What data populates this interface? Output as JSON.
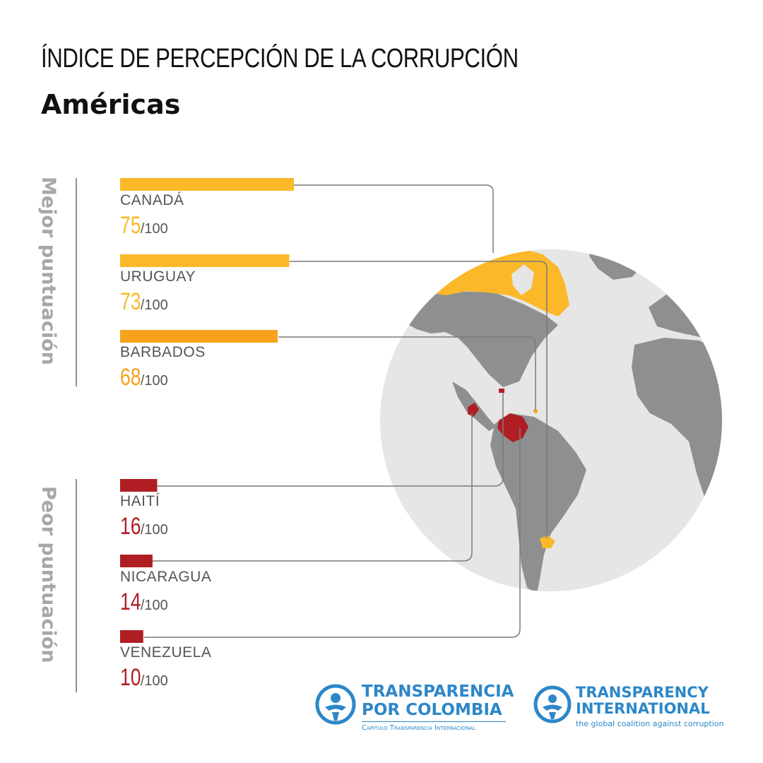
{
  "header": {
    "title": "ÍNDICE DE PERCEPCIÓN DE LA CORRUPCIÓN",
    "subtitle": "Américas"
  },
  "side_labels": {
    "best": "Mejor puntuación",
    "worst": "Peor puntuación"
  },
  "chart_data": {
    "type": "bar",
    "orientation": "horizontal",
    "title": "ÍNDICE DE PERCEPCIÓN DE LA CORRUPCIÓN",
    "subtitle": "Américas",
    "max": 100,
    "denominator_label": "/100",
    "groups": [
      {
        "name": "Mejor puntuación",
        "items": [
          {
            "country": "CANADÁ",
            "value": 75,
            "color": "#fbb829"
          },
          {
            "country": "URUGUAY",
            "value": 73,
            "color": "#fbb829"
          },
          {
            "country": "BARBADOS",
            "value": 68,
            "color": "#f7a21d"
          }
        ]
      },
      {
        "name": "Peor puntuación",
        "items": [
          {
            "country": "HAITÍ",
            "value": 16,
            "color": "#b01e24"
          },
          {
            "country": "NICARAGUA",
            "value": 14,
            "color": "#b01e24"
          },
          {
            "country": "VENEZUELA",
            "value": 10,
            "color": "#b01e24"
          }
        ]
      }
    ]
  },
  "colors": {
    "best_bar": "#fbb829",
    "worst_bar": "#b01e24",
    "globe_ocean": "#e6e6e6",
    "land": "#8e8f91",
    "logo_blue": "#2d87c8"
  },
  "logos": {
    "tpc": {
      "line1": "TRANSPARENCIA",
      "line2": "POR COLOMBIA",
      "tagline": "Capítulo Transparencia Internacional"
    },
    "ti": {
      "line1": "TRANSPARENCY",
      "line2": "INTERNATIONAL",
      "tagline": "the global coalition against corruption"
    }
  }
}
